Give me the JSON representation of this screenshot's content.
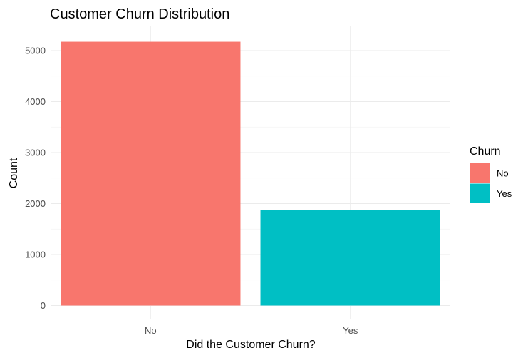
{
  "chart_data": {
    "type": "bar",
    "title": "Customer Churn Distribution",
    "xlabel": "Did the Customer Churn?",
    "ylabel": "Count",
    "categories": [
      "No",
      "Yes"
    ],
    "values": [
      5174,
      1869
    ],
    "colors": [
      "#F8766D",
      "#00BFC4"
    ],
    "ylim": [
      0,
      5400
    ],
    "yticks": [
      0,
      1000,
      2000,
      3000,
      4000,
      5000
    ],
    "grid": true,
    "legend": {
      "title": "Churn",
      "position": "right",
      "entries": [
        {
          "label": "No",
          "color": "#F8766D"
        },
        {
          "label": "Yes",
          "color": "#00BFC4"
        }
      ]
    }
  }
}
